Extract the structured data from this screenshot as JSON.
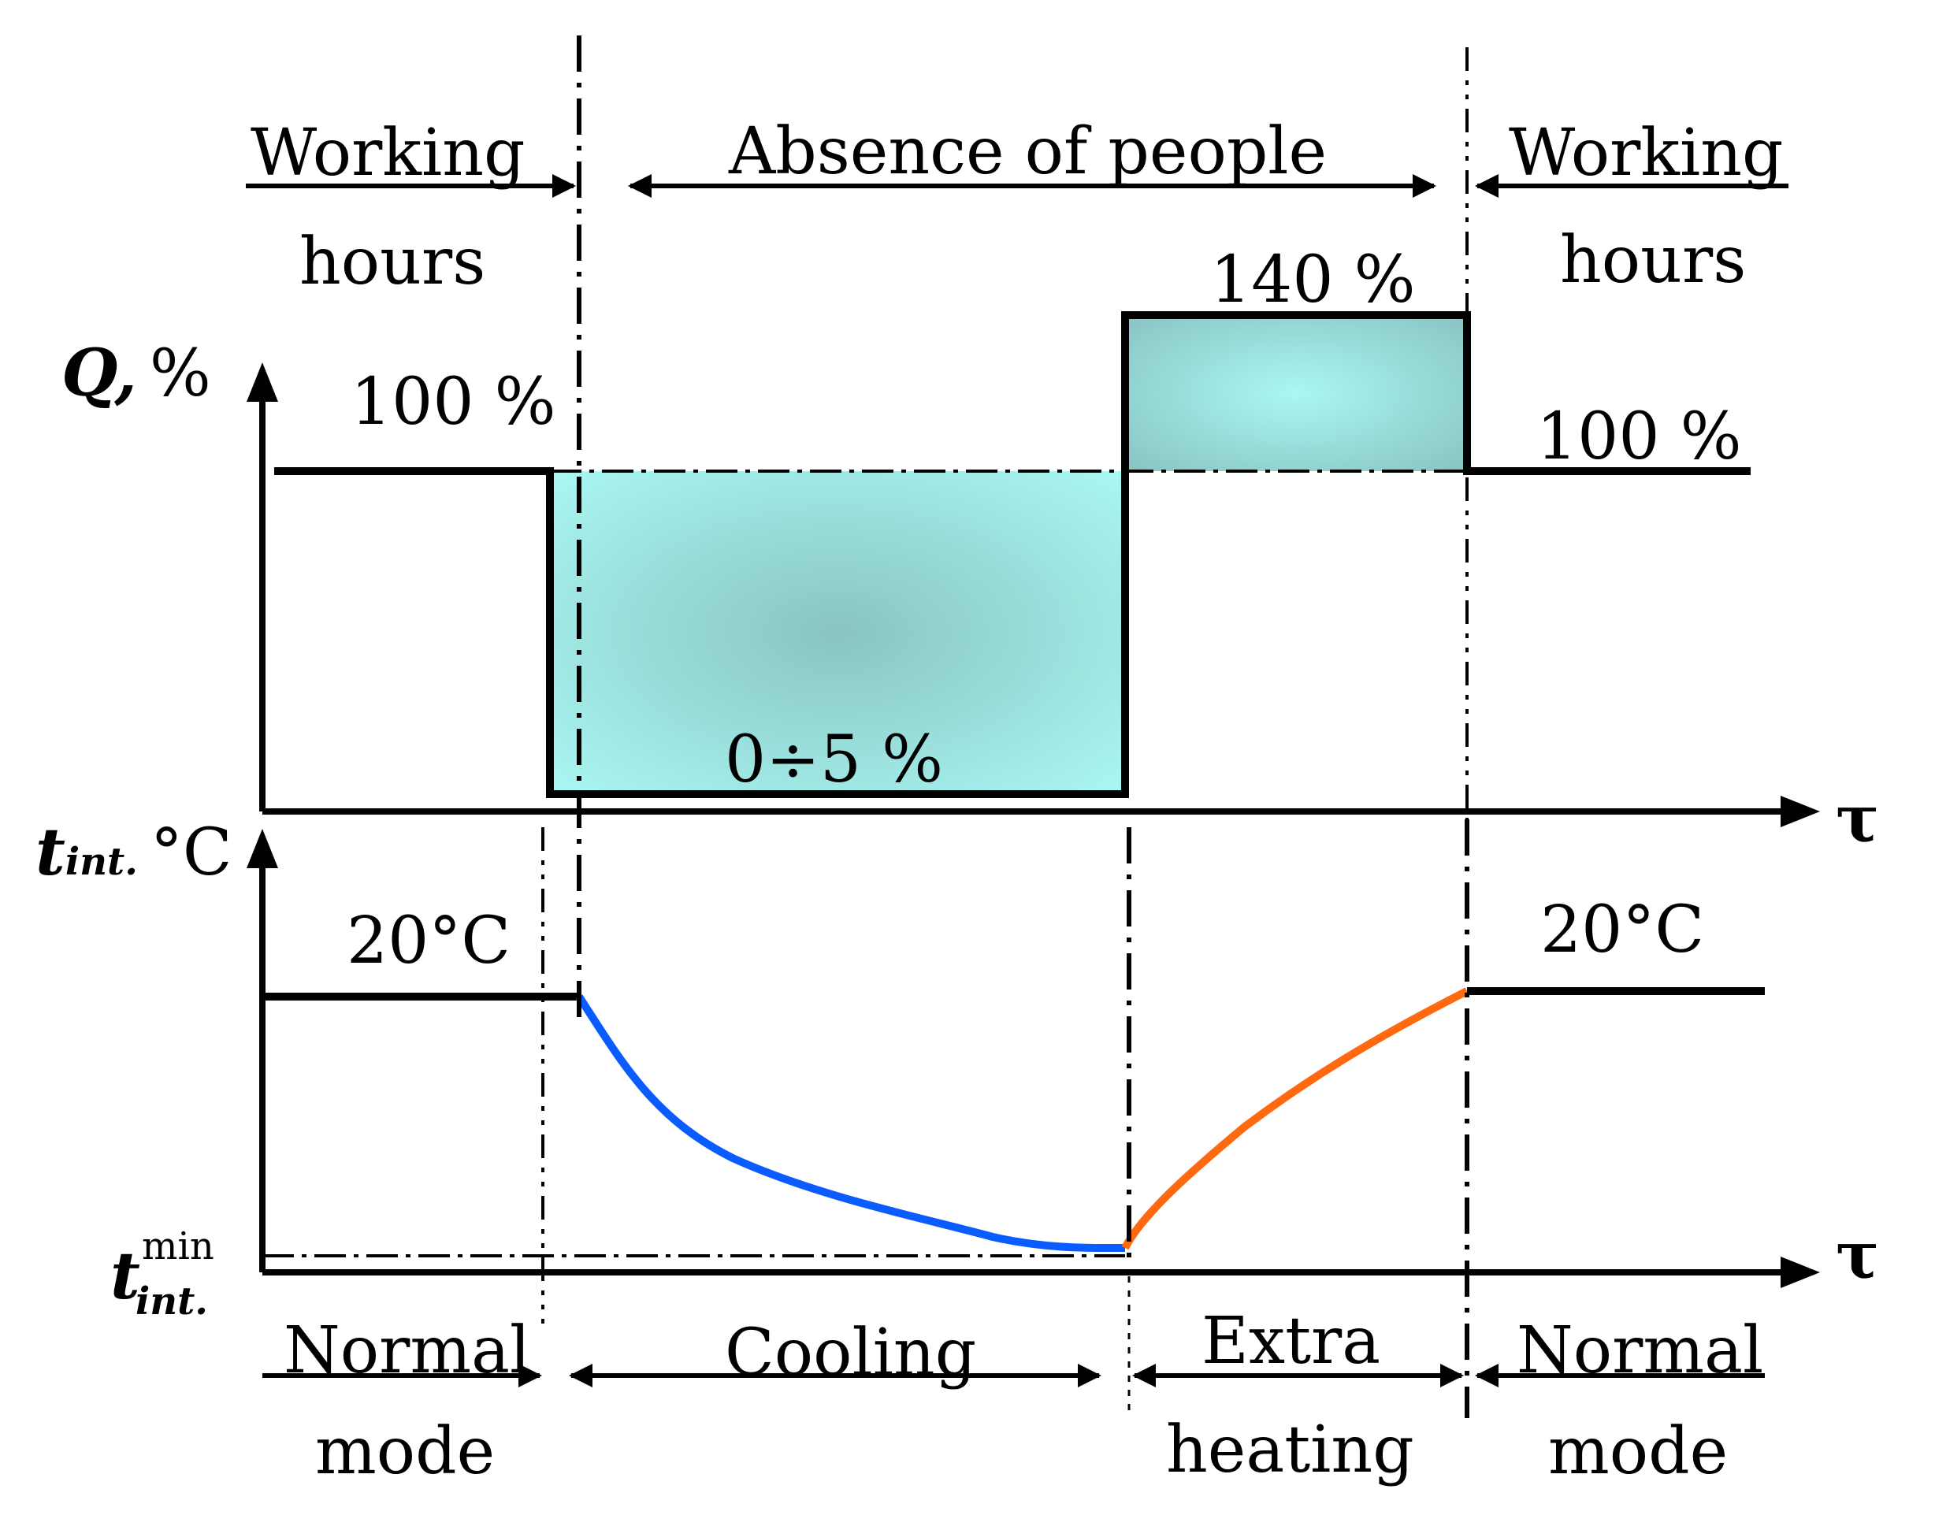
{
  "top_labels": {
    "left_line1": "Working",
    "left_line2": "hours",
    "middle": "Absence of people",
    "right_line1": "Working",
    "right_line2": "hours"
  },
  "upper_chart": {
    "axis_label_symbol": "Q,",
    "axis_label_unit": "%",
    "time_axis_label": "τ",
    "level_left": "100 %",
    "level_low": "0÷5 %",
    "level_boost": "140 %",
    "level_right": "100 %"
  },
  "lower_chart": {
    "axis_label_symbol": "t",
    "axis_label_sub": "int.",
    "axis_label_unit": "°C",
    "time_axis_label": "τ",
    "min_symbol": "t",
    "min_sup": "min",
    "min_sub": "int.",
    "temp_left": "20°C",
    "temp_right": "20°C"
  },
  "bottom_labels": {
    "normal1_line1": "Normal",
    "normal1_line2": "mode",
    "cooling": "Cooling",
    "extra_line1": "Extra",
    "extra_line2": "heating",
    "normal2_line1": "Normal",
    "normal2_line2": "mode"
  },
  "colors": {
    "fill_light": "#aaf7f3",
    "fill_dark": "#88c4c3",
    "cooling_curve": "#0a5cff",
    "heating_curve": "#ff6a10"
  }
}
